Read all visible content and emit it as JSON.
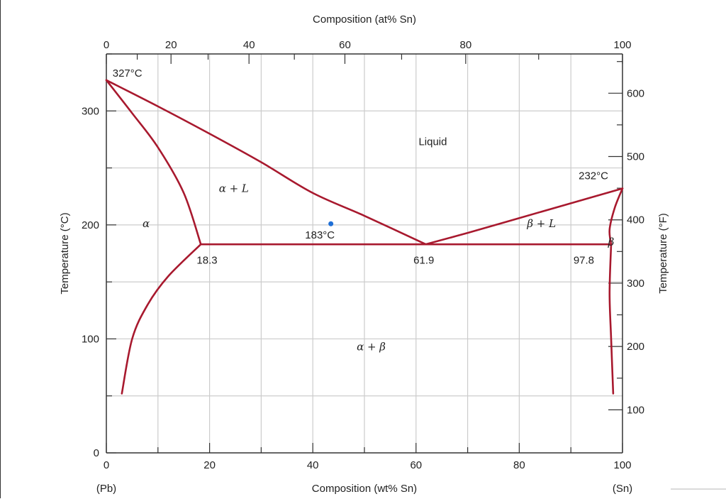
{
  "chart_data": {
    "type": "line",
    "title": "",
    "xlabel": "Composition (wt% Sn)",
    "xlabel_top": "Composition (at% Sn)",
    "ylabel": "Temperature (°C)",
    "ylabel_right": "Temperature (°F)",
    "xlim": [
      0,
      100
    ],
    "ylim": [
      0,
      350
    ],
    "grid": true,
    "x_ticks_bottom": [
      0,
      20,
      40,
      60,
      80,
      100
    ],
    "x_ticks_top": [
      0,
      20,
      40,
      60,
      80,
      100
    ],
    "y_ticks_left": [
      0,
      100,
      200,
      300
    ],
    "y_ticks_right": [
      100,
      200,
      300,
      400,
      500,
      600
    ],
    "endpoint_labels": {
      "left": "(Pb)",
      "right": "(Sn)"
    },
    "series": [
      {
        "x": [
          0,
          10,
          20,
          30,
          40,
          50,
          61.9
        ],
        "y": [
          327,
          304,
          280,
          255,
          228,
          208,
          183
        ]
      },
      {
        "x": [
          61.9,
          70,
          80,
          90,
          100
        ],
        "y": [
          183,
          193,
          206,
          219,
          232
        ]
      },
      {
        "x": [
          0,
          5,
          10,
          15,
          18.3
        ],
        "y": [
          327,
          298,
          268,
          228,
          183
        ]
      },
      {
        "x": [
          18.3,
          97.8
        ],
        "y": [
          183,
          183
        ]
      },
      {
        "x": [
          18.3,
          12,
          8,
          5,
          3
        ],
        "y": [
          183,
          155,
          130,
          100,
          52
        ]
      },
      {
        "x": [
          100,
          98.5,
          97.5,
          97.8
        ],
        "y": [
          232,
          215,
          196,
          183
        ]
      },
      {
        "x": [
          97.8,
          97.5,
          97.8,
          98.2
        ],
        "y": [
          183,
          140,
          100,
          52
        ]
      }
    ],
    "point": {
      "x": 43.5,
      "y": 201,
      "color": "#1f6fd6"
    },
    "line_color": "#a8192e",
    "annotations": [
      {
        "text": "327°C",
        "x": 1.2,
        "y": 330
      },
      {
        "text": "232°C",
        "x": 91.5,
        "y": 240
      },
      {
        "text": "183°C",
        "x": 38.5,
        "y": 188
      },
      {
        "text": "18.3",
        "x": 17.5,
        "y": 166
      },
      {
        "text": "61.9",
        "x": 59.5,
        "y": 166
      },
      {
        "text": "97.8",
        "x": 90.5,
        "y": 166
      },
      {
        "text": "Liquid",
        "x": 60.5,
        "y": 270
      }
    ],
    "region_labels": [
      {
        "text": "α + L",
        "x": 21.8,
        "y": 229
      },
      {
        "text": "α",
        "x": 7,
        "y": 198
      },
      {
        "text": "β + L",
        "x": 81.5,
        "y": 198
      },
      {
        "text": "β",
        "x": 97.2,
        "y": 182
      },
      {
        "text": "α + β",
        "x": 48.5,
        "y": 90
      }
    ]
  }
}
